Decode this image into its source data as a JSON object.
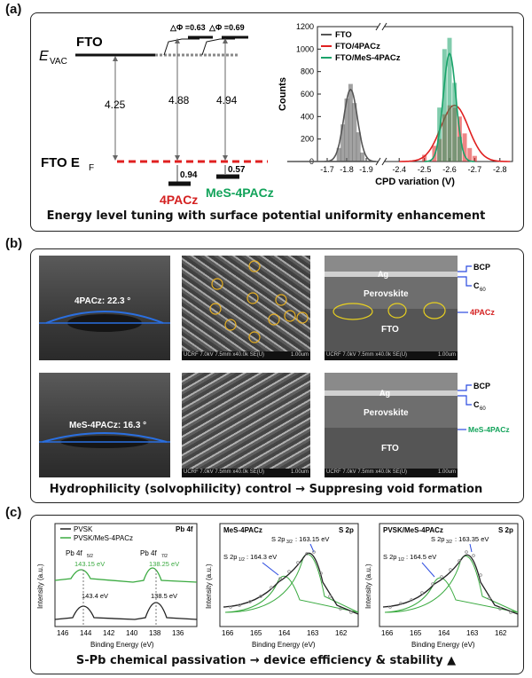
{
  "panel_a": {
    "label": "(a)",
    "diagram": {
      "evac_label": "E",
      "evac_sub": "VAC",
      "fto_label": "FTO",
      "ef_label": "FTO E",
      "ef_sub": "F",
      "gap_fto": "4.25",
      "gap_4pacz": "4.88",
      "gap_mes": "4.94",
      "dphi_4pacz": "△Φ =0.63",
      "dphi_mes": "△Φ =0.69",
      "offset_4pacz": "0.94",
      "offset_mes": "0.57",
      "name_4pacz": "4PACz",
      "name_mes": "MeS-4PACz",
      "color_4pacz": "#d42020",
      "color_mes": "#12a35a"
    },
    "caption": "Energy level tuning with surface potential uniformity enhancement"
  },
  "chart_data": {
    "type": "bar",
    "xlabel": "CPD variation (V)",
    "ylabel": "Counts",
    "ylim": [
      0,
      1200
    ],
    "xlim_left": [
      -1.65,
      -1.95
    ],
    "xlim_right": [
      -2.35,
      -2.85
    ],
    "axis_break": true,
    "x_ticks": [
      "-1.7",
      "-1.8",
      "-1.9",
      "-2.4",
      "-2.5",
      "-2.6",
      "-2.7",
      "-2.8"
    ],
    "y_ticks": [
      "0",
      "200",
      "400",
      "600",
      "800",
      "1000",
      "1200"
    ],
    "legend_position": "top-left",
    "series": [
      {
        "name": "FTO",
        "color": "#555555",
        "bins_x": [
          -1.76,
          -1.78,
          -1.8,
          -1.82,
          -1.84,
          -1.86,
          -1.88
        ],
        "bins_y": [
          120,
          330,
          560,
          690,
          520,
          260,
          80
        ],
        "fit_center": -1.82,
        "fit_sigma": 0.035,
        "fit_peak": 640
      },
      {
        "name": "FTO/4PACz",
        "color": "#e02020",
        "bins_x": [
          -2.5,
          -2.54,
          -2.56,
          -2.58,
          -2.6,
          -2.62,
          -2.64,
          -2.66,
          -2.68,
          -2.7
        ],
        "bins_y": [
          60,
          140,
          200,
          420,
          500,
          480,
          400,
          250,
          120,
          50
        ],
        "fit_center": -2.62,
        "fit_sigma": 0.055,
        "fit_peak": 500
      },
      {
        "name": "FTO/MeS-4PACz",
        "color": "#1aa36a",
        "bins_x": [
          -2.56,
          -2.58,
          -2.6,
          -2.62,
          -2.64
        ],
        "bins_y": [
          480,
          1000,
          1100,
          700,
          220
        ],
        "fit_center": -2.6,
        "fit_sigma": 0.025,
        "fit_peak": 960
      }
    ]
  },
  "panel_b": {
    "label": "(b)",
    "contact_4pacz": "4PACz: 22.3 °",
    "contact_mes": "MeS-4PACz: 16.3 °",
    "sem_footer": "UCRF 7.0kV 7.5mm x40.0k SE(U)",
    "sem_scale": "1.00um",
    "layers": {
      "ag": "Ag",
      "perovskite": "Perovskite",
      "fto": "FTO",
      "bcp": "BCP",
      "c60": "C",
      "c60_sub": "60",
      "sam_4pacz": "4PACz",
      "sam_mes": "MeS-4PACz"
    },
    "caption": "Hydrophilicity (solvophilicity) control → Suppresing void formation"
  },
  "panel_c": {
    "label": "(c)",
    "pb": {
      "title": "Pb 4f",
      "legend_1": "PVSK",
      "legend_2": "PVSK/MeS-4PACz",
      "peak1_label": "Pb 4f",
      "peak1_sub": "5/2",
      "peak2_label": "Pb 4f",
      "peak2_sub": "7/2",
      "e1_mes": "143.15 eV",
      "e2_mes": "138.25 eV",
      "e1_pvsk": "143.4 eV",
      "e2_pvsk": "138.5 eV",
      "xticks": [
        "146",
        "144",
        "142",
        "140",
        "138",
        "136"
      ]
    },
    "s_mes": {
      "name": "MeS-4PACz",
      "title": "S 2p",
      "p12": "S 2p",
      "p12_sub": "1/2",
      "p12_val": ": 164.3 eV",
      "p32": "S 2p",
      "p32_sub": "3/2",
      "p32_val": ": 163.15 eV",
      "xticks": [
        "166",
        "165",
        "164",
        "163",
        "162"
      ]
    },
    "s_pvsk": {
      "name": "PVSK/MeS-4PACz",
      "title": "S 2p",
      "p12": "S 2p",
      "p12_sub": "1/2",
      "p12_val": ": 164.5 eV",
      "p32": "S 2p",
      "p32_sub": "3/2",
      "p32_val": ": 163.35 eV",
      "xticks": [
        "166",
        "165",
        "164",
        "163",
        "162"
      ]
    },
    "ylabel": "Intensity (a.u.)",
    "xlabel": "Binding Energy (eV)",
    "caption": "S-Pb chemical passivation → device efficiency & stability ▲"
  }
}
